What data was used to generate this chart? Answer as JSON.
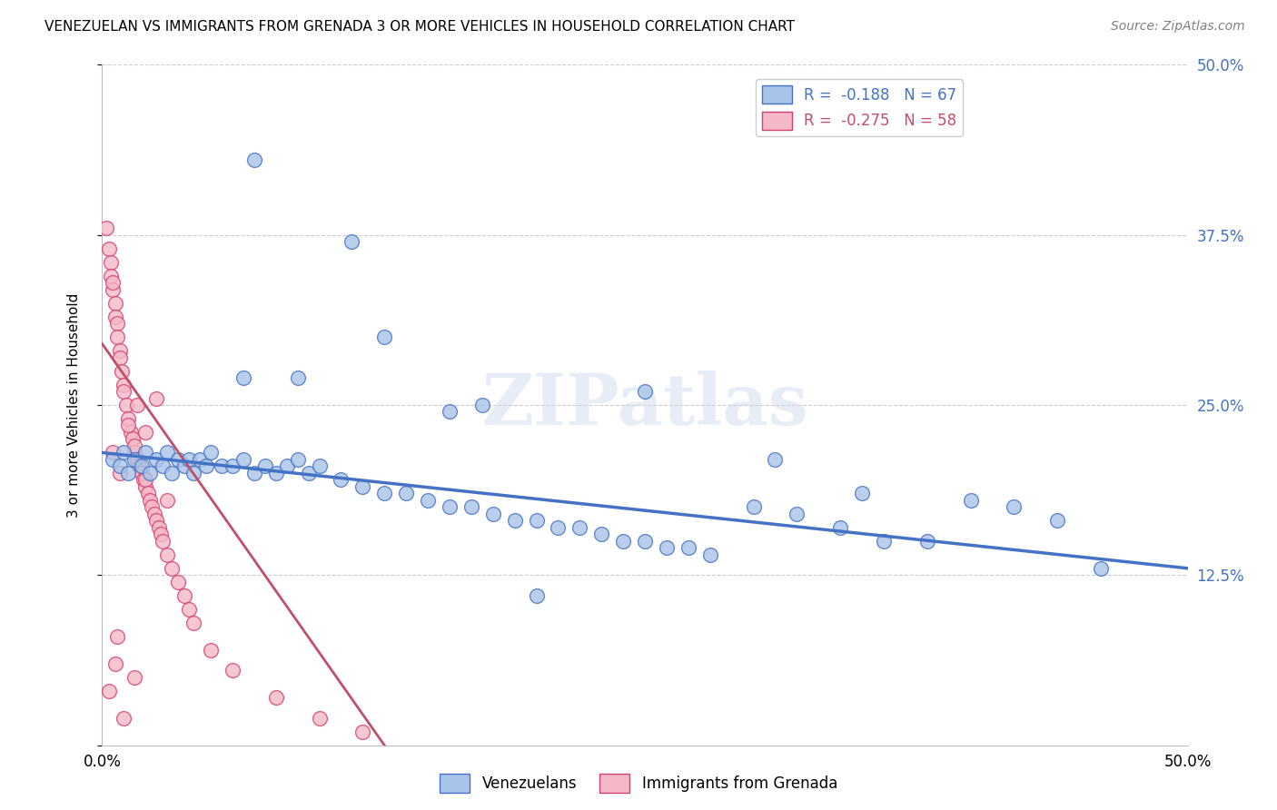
{
  "title": "VENEZUELAN VS IMMIGRANTS FROM GRENADA 3 OR MORE VEHICLES IN HOUSEHOLD CORRELATION CHART",
  "source": "Source: ZipAtlas.com",
  "ylabel": "3 or more Vehicles in Household",
  "xmin": 0.0,
  "xmax": 0.5,
  "ymin": 0.0,
  "ymax": 0.5,
  "yticks": [
    0.0,
    0.125,
    0.25,
    0.375,
    0.5
  ],
  "ytick_labels": [
    "",
    "12.5%",
    "25.0%",
    "37.5%",
    "50.0%"
  ],
  "venezuelan_color": "#a8c4e8",
  "venezuelan_edge": "#4472c4",
  "grenada_color": "#f4b8c8",
  "grenada_edge": "#d44070",
  "blue_line_color": "#4472c4",
  "pink_line_color": "#c0506a",
  "watermark": "ZIPatlas",
  "venezuelan_x": [
    0.005,
    0.008,
    0.01,
    0.012,
    0.015,
    0.018,
    0.02,
    0.022,
    0.025,
    0.028,
    0.03,
    0.032,
    0.035,
    0.038,
    0.04,
    0.042,
    0.045,
    0.048,
    0.05,
    0.055,
    0.06,
    0.065,
    0.07,
    0.075,
    0.08,
    0.085,
    0.09,
    0.095,
    0.1,
    0.11,
    0.12,
    0.13,
    0.14,
    0.15,
    0.16,
    0.17,
    0.18,
    0.19,
    0.2,
    0.21,
    0.22,
    0.23,
    0.24,
    0.25,
    0.26,
    0.27,
    0.28,
    0.3,
    0.32,
    0.34,
    0.36,
    0.38,
    0.4,
    0.42,
    0.44,
    0.46,
    0.065,
    0.115,
    0.175,
    0.35,
    0.31,
    0.09,
    0.16,
    0.25,
    0.13,
    0.2,
    0.07
  ],
  "venezuelan_y": [
    0.21,
    0.205,
    0.215,
    0.2,
    0.21,
    0.205,
    0.215,
    0.2,
    0.21,
    0.205,
    0.215,
    0.2,
    0.21,
    0.205,
    0.21,
    0.2,
    0.21,
    0.205,
    0.215,
    0.205,
    0.205,
    0.21,
    0.2,
    0.205,
    0.2,
    0.205,
    0.21,
    0.2,
    0.205,
    0.195,
    0.19,
    0.185,
    0.185,
    0.18,
    0.175,
    0.175,
    0.17,
    0.165,
    0.165,
    0.16,
    0.16,
    0.155,
    0.15,
    0.15,
    0.145,
    0.145,
    0.14,
    0.175,
    0.17,
    0.16,
    0.15,
    0.15,
    0.18,
    0.175,
    0.165,
    0.13,
    0.27,
    0.37,
    0.25,
    0.185,
    0.21,
    0.27,
    0.245,
    0.26,
    0.3,
    0.11,
    0.43
  ],
  "grenada_x": [
    0.002,
    0.003,
    0.004,
    0.004,
    0.005,
    0.005,
    0.006,
    0.006,
    0.007,
    0.007,
    0.008,
    0.008,
    0.009,
    0.01,
    0.01,
    0.011,
    0.012,
    0.013,
    0.014,
    0.015,
    0.015,
    0.016,
    0.017,
    0.018,
    0.019,
    0.02,
    0.02,
    0.021,
    0.022,
    0.023,
    0.024,
    0.025,
    0.026,
    0.027,
    0.028,
    0.03,
    0.032,
    0.035,
    0.038,
    0.04,
    0.042,
    0.05,
    0.06,
    0.08,
    0.1,
    0.12,
    0.005,
    0.008,
    0.012,
    0.016,
    0.02,
    0.025,
    0.03,
    0.01,
    0.015,
    0.007,
    0.003,
    0.006
  ],
  "grenada_y": [
    0.38,
    0.365,
    0.355,
    0.345,
    0.335,
    0.34,
    0.325,
    0.315,
    0.31,
    0.3,
    0.29,
    0.285,
    0.275,
    0.265,
    0.26,
    0.25,
    0.24,
    0.23,
    0.225,
    0.215,
    0.22,
    0.21,
    0.205,
    0.2,
    0.195,
    0.19,
    0.195,
    0.185,
    0.18,
    0.175,
    0.17,
    0.165,
    0.16,
    0.155,
    0.15,
    0.14,
    0.13,
    0.12,
    0.11,
    0.1,
    0.09,
    0.07,
    0.055,
    0.035,
    0.02,
    0.01,
    0.215,
    0.2,
    0.235,
    0.25,
    0.23,
    0.255,
    0.18,
    0.02,
    0.05,
    0.08,
    0.04,
    0.06
  ],
  "blue_trend_x": [
    0.0,
    0.5
  ],
  "blue_trend_y": [
    0.215,
    0.13
  ],
  "pink_trend_x": [
    0.0,
    0.13
  ],
  "pink_trend_y": [
    0.295,
    0.0
  ]
}
